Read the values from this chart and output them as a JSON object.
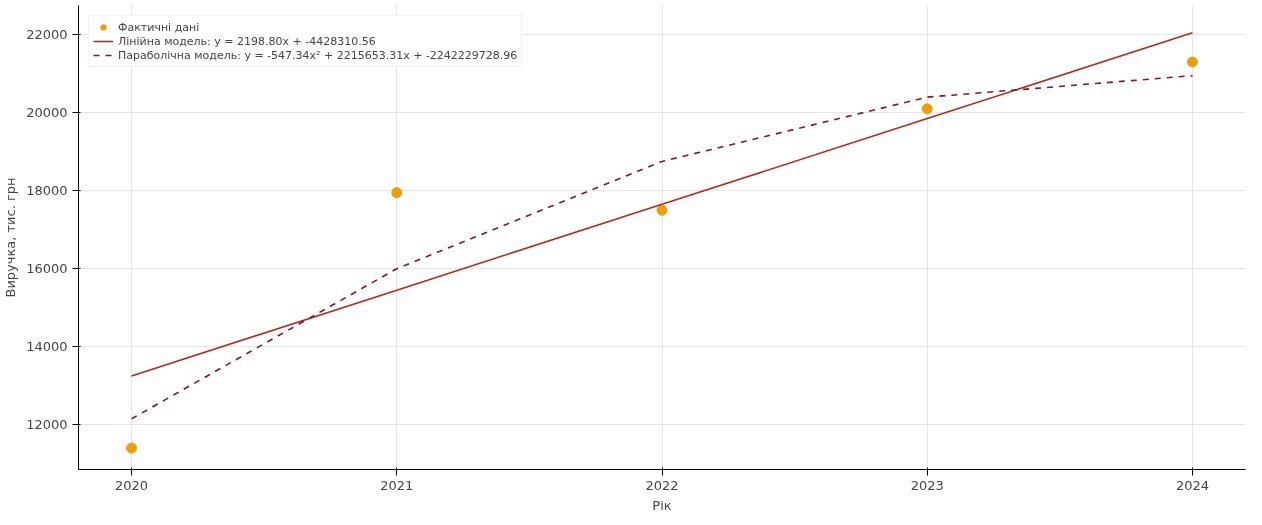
{
  "chart_data": {
    "type": "line",
    "xlabel": "Рік",
    "ylabel": "Виручка, тис. грн",
    "x": [
      2020,
      2021,
      2022,
      2023,
      2024
    ],
    "series": [
      {
        "name": "Фактичні дані",
        "type": "scatter",
        "marker": "circle",
        "color": "#e8a010",
        "values": [
          11400,
          17950,
          17500,
          20100,
          21300
        ]
      },
      {
        "name": "Лінійна модель: y = 2198.80x + -4428310.56",
        "line_style": "solid",
        "color": "#b22a1e",
        "values": [
          13250,
          15450,
          17650,
          19850,
          22050
        ]
      },
      {
        "name": "Параболічна модель: y = -547.34x² + 2215653.31x + -2242229728.96",
        "line_style": "dashed",
        "color": "#7b1830",
        "values": [
          12150,
          16000,
          18750,
          20400,
          20950
        ]
      }
    ],
    "xlim": [
      2019.8,
      2024.2
    ],
    "xticks": [
      2020,
      2021,
      2022,
      2023,
      2024
    ],
    "ylim": [
      10850,
      22750
    ],
    "yticks": [
      12000,
      14000,
      16000,
      18000,
      20000,
      22000
    ],
    "grid": true,
    "legend": "top left"
  }
}
